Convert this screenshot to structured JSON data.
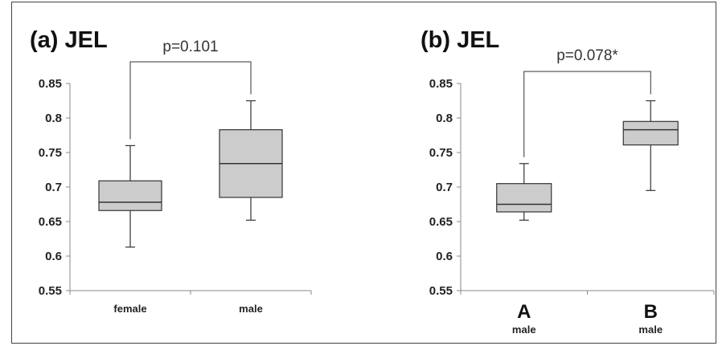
{
  "chart_data": [
    {
      "type": "box",
      "title": "(a) JEL",
      "ylim": [
        0.55,
        0.85
      ],
      "yticks": [
        "0.85",
        "0.8",
        "0.75",
        "0.7",
        "0.65",
        "0.6",
        "0.55"
      ],
      "categories": [
        {
          "label": "female",
          "sublabel": ""
        },
        {
          "label": "male",
          "sublabel": ""
        }
      ],
      "boxes": [
        {
          "whisker_low": 0.613,
          "q1": 0.666,
          "median": 0.678,
          "q3": 0.709,
          "whisker_high": 0.76
        },
        {
          "whisker_low": 0.652,
          "q1": 0.685,
          "median": 0.734,
          "q3": 0.783,
          "whisker_high": 0.825
        }
      ],
      "annotation": {
        "text": "p=0.101",
        "from": 0,
        "to": 1
      },
      "fill_color": "#cccccc",
      "line_color": "#333333"
    },
    {
      "type": "box",
      "title": "(b) JEL",
      "ylim": [
        0.55,
        0.85
      ],
      "yticks": [
        "0.85",
        "0.8",
        "0.75",
        "0.7",
        "0.65",
        "0.6",
        "0.55"
      ],
      "categories": [
        {
          "label": "A",
          "sublabel": "male"
        },
        {
          "label": "B",
          "sublabel": "male"
        }
      ],
      "boxes": [
        {
          "whisker_low": 0.652,
          "q1": 0.664,
          "median": 0.675,
          "q3": 0.705,
          "whisker_high": 0.734
        },
        {
          "whisker_low": 0.695,
          "q1": 0.761,
          "median": 0.783,
          "q3": 0.795,
          "whisker_high": 0.825
        }
      ],
      "annotation": {
        "text": "p=0.078*",
        "from": 0,
        "to": 1
      },
      "fill_color": "#cccccc",
      "line_color": "#333333"
    }
  ]
}
